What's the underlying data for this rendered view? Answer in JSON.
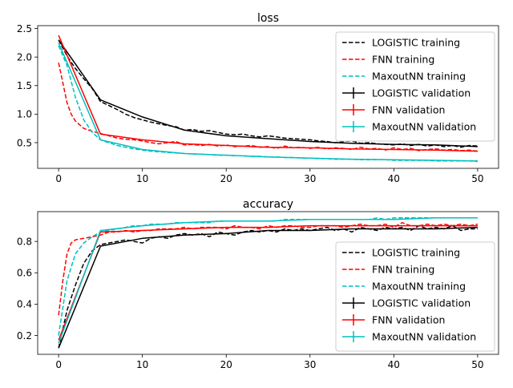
{
  "chart_data": [
    {
      "type": "line",
      "title": "loss",
      "xlabel": "",
      "ylabel": "",
      "xlim": [
        -2.5,
        52.5
      ],
      "ylim": [
        0.05,
        2.55
      ],
      "xticks": [
        0,
        10,
        20,
        30,
        40,
        50
      ],
      "xtick_labels": [
        "0",
        "10",
        "20",
        "30",
        "40",
        "50"
      ],
      "yticks": [
        0.5,
        1.0,
        1.5,
        2.0,
        2.5
      ],
      "ytick_labels": [
        "0.5",
        "1.0",
        "1.5",
        "2.0",
        "2.5"
      ],
      "legend_position": "top-right",
      "series": [
        {
          "name": "LOGISTIC training",
          "style": "dashed",
          "color": "#000000",
          "x": [
            0,
            1,
            2,
            3,
            4,
            5,
            6,
            7,
            8,
            9,
            10,
            11,
            12,
            13,
            14,
            15,
            16,
            17,
            18,
            19,
            20,
            21,
            22,
            23,
            24,
            25,
            26,
            27,
            28,
            29,
            30,
            31,
            32,
            33,
            34,
            35,
            36,
            37,
            38,
            39,
            40,
            41,
            42,
            43,
            44,
            45,
            46,
            47,
            48,
            49,
            50
          ],
          "y": [
            2.3,
            2.02,
            1.8,
            1.62,
            1.45,
            1.22,
            1.15,
            1.08,
            1.0,
            0.94,
            0.9,
            0.86,
            0.83,
            0.8,
            0.78,
            0.72,
            0.73,
            0.7,
            0.71,
            0.68,
            0.65,
            0.64,
            0.65,
            0.62,
            0.6,
            0.62,
            0.6,
            0.58,
            0.57,
            0.56,
            0.55,
            0.53,
            0.52,
            0.5,
            0.52,
            0.53,
            0.49,
            0.5,
            0.48,
            0.47,
            0.46,
            0.48,
            0.45,
            0.47,
            0.44,
            0.46,
            0.43,
            0.45,
            0.42,
            0.45,
            0.44
          ]
        },
        {
          "name": "FNN training",
          "style": "dashed",
          "color": "#ff0000",
          "x": [
            0,
            0.5,
            1,
            1.5,
            2,
            3,
            4,
            5,
            6,
            7,
            8,
            9,
            10,
            11,
            12,
            13,
            14,
            15,
            16,
            17,
            18,
            19,
            20,
            21,
            22,
            23,
            24,
            25,
            26,
            27,
            28,
            29,
            30,
            31,
            32,
            33,
            34,
            35,
            36,
            37,
            38,
            39,
            40,
            41,
            42,
            43,
            44,
            45,
            46,
            47,
            48,
            49,
            50
          ],
          "y": [
            1.9,
            1.55,
            1.2,
            1.0,
            0.88,
            0.75,
            0.7,
            0.66,
            0.62,
            0.58,
            0.56,
            0.55,
            0.53,
            0.5,
            0.48,
            0.5,
            0.52,
            0.46,
            0.47,
            0.45,
            0.47,
            0.44,
            0.46,
            0.43,
            0.44,
            0.45,
            0.42,
            0.43,
            0.4,
            0.44,
            0.41,
            0.42,
            0.4,
            0.42,
            0.39,
            0.41,
            0.4,
            0.38,
            0.42,
            0.39,
            0.4,
            0.37,
            0.41,
            0.38,
            0.4,
            0.36,
            0.38,
            0.39,
            0.37,
            0.38,
            0.36,
            0.37,
            0.35
          ]
        },
        {
          "name": "MaxoutNN training",
          "style": "dashed",
          "color": "#00bfbf",
          "x": [
            0,
            1,
            2,
            3,
            4,
            5,
            6,
            7,
            8,
            9,
            10,
            11,
            12,
            13,
            14,
            15,
            16,
            17,
            18,
            19,
            20,
            21,
            22,
            23,
            24,
            25,
            26,
            27,
            28,
            29,
            30,
            31,
            32,
            33,
            34,
            35,
            36,
            37,
            38,
            39,
            40,
            41,
            42,
            43,
            44,
            45,
            46,
            47,
            48,
            49,
            50
          ],
          "y": [
            2.2,
            1.85,
            1.3,
            0.9,
            0.68,
            0.55,
            0.5,
            0.45,
            0.42,
            0.39,
            0.37,
            0.35,
            0.34,
            0.33,
            0.32,
            0.31,
            0.3,
            0.3,
            0.29,
            0.28,
            0.28,
            0.27,
            0.27,
            0.26,
            0.26,
            0.25,
            0.25,
            0.24,
            0.24,
            0.23,
            0.23,
            0.22,
            0.22,
            0.21,
            0.21,
            0.21,
            0.2,
            0.2,
            0.2,
            0.2,
            0.19,
            0.19,
            0.19,
            0.19,
            0.19,
            0.18,
            0.18,
            0.18,
            0.18,
            0.18,
            0.17
          ]
        },
        {
          "name": "LOGISTIC validation",
          "style": "solid",
          "color": "#000000",
          "x": [
            0,
            5,
            10,
            15,
            20,
            25,
            30,
            35,
            40,
            45,
            50
          ],
          "y": [
            2.3,
            1.25,
            0.95,
            0.72,
            0.62,
            0.57,
            0.52,
            0.49,
            0.47,
            0.46,
            0.43
          ]
        },
        {
          "name": "FNN validation",
          "style": "solid",
          "color": "#ff0000",
          "x": [
            0,
            5,
            10,
            15,
            20,
            25,
            30,
            35,
            40,
            45,
            50
          ],
          "y": [
            2.38,
            0.65,
            0.55,
            0.48,
            0.45,
            0.42,
            0.41,
            0.39,
            0.38,
            0.37,
            0.35
          ]
        },
        {
          "name": "MaxoutNN validation",
          "style": "solid",
          "color": "#00bfbf",
          "x": [
            0,
            5,
            10,
            15,
            20,
            25,
            30,
            35,
            40,
            45,
            50
          ],
          "y": [
            2.25,
            0.55,
            0.38,
            0.31,
            0.28,
            0.25,
            0.23,
            0.21,
            0.2,
            0.19,
            0.18
          ]
        }
      ]
    },
    {
      "type": "line",
      "title": "accuracy",
      "xlabel": "",
      "ylabel": "",
      "xlim": [
        -2.5,
        52.5
      ],
      "ylim": [
        0.08,
        0.99
      ],
      "xticks": [
        0,
        10,
        20,
        30,
        40,
        50
      ],
      "xtick_labels": [
        "0",
        "10",
        "20",
        "30",
        "40",
        "50"
      ],
      "yticks": [
        0.2,
        0.4,
        0.6,
        0.8
      ],
      "ytick_labels": [
        "0.2",
        "0.4",
        "0.6",
        "0.8"
      ],
      "legend_position": "bottom-right",
      "series": [
        {
          "name": "LOGISTIC training",
          "style": "dashed",
          "color": "#000000",
          "x": [
            0,
            1,
            2,
            3,
            4,
            5,
            6,
            7,
            8,
            9,
            10,
            11,
            12,
            13,
            14,
            15,
            16,
            17,
            18,
            19,
            20,
            21,
            22,
            23,
            24,
            25,
            26,
            27,
            28,
            29,
            30,
            31,
            32,
            33,
            34,
            35,
            36,
            37,
            38,
            39,
            40,
            41,
            42,
            43,
            44,
            45,
            46,
            47,
            48,
            49,
            50
          ],
          "y": [
            0.12,
            0.36,
            0.52,
            0.66,
            0.74,
            0.78,
            0.79,
            0.8,
            0.81,
            0.8,
            0.79,
            0.82,
            0.83,
            0.82,
            0.84,
            0.85,
            0.84,
            0.85,
            0.83,
            0.86,
            0.85,
            0.84,
            0.86,
            0.87,
            0.86,
            0.87,
            0.86,
            0.88,
            0.87,
            0.88,
            0.87,
            0.88,
            0.89,
            0.87,
            0.88,
            0.86,
            0.89,
            0.88,
            0.87,
            0.89,
            0.88,
            0.89,
            0.87,
            0.9,
            0.88,
            0.89,
            0.88,
            0.9,
            0.87,
            0.88,
            0.88
          ]
        },
        {
          "name": "FNN training",
          "style": "dashed",
          "color": "#ff0000",
          "x": [
            0,
            0.5,
            1,
            1.5,
            2,
            3,
            4,
            5,
            6,
            7,
            8,
            9,
            10,
            11,
            12,
            13,
            14,
            15,
            16,
            17,
            18,
            19,
            20,
            21,
            22,
            23,
            24,
            25,
            26,
            27,
            28,
            29,
            30,
            31,
            32,
            33,
            34,
            35,
            36,
            37,
            38,
            39,
            40,
            41,
            42,
            43,
            44,
            45,
            46,
            47,
            48,
            49,
            50
          ],
          "y": [
            0.33,
            0.55,
            0.72,
            0.79,
            0.81,
            0.82,
            0.83,
            0.84,
            0.86,
            0.86,
            0.87,
            0.86,
            0.87,
            0.87,
            0.88,
            0.88,
            0.88,
            0.89,
            0.88,
            0.89,
            0.89,
            0.89,
            0.88,
            0.9,
            0.89,
            0.89,
            0.88,
            0.9,
            0.89,
            0.9,
            0.9,
            0.89,
            0.89,
            0.9,
            0.9,
            0.9,
            0.89,
            0.9,
            0.91,
            0.9,
            0.9,
            0.91,
            0.89,
            0.92,
            0.9,
            0.9,
            0.91,
            0.9,
            0.91,
            0.9,
            0.91,
            0.9,
            0.91
          ]
        },
        {
          "name": "MaxoutNN training",
          "style": "dashed",
          "color": "#00bfbf",
          "x": [
            0,
            1,
            2,
            3,
            4,
            5,
            6,
            7,
            8,
            9,
            10,
            11,
            12,
            13,
            14,
            15,
            16,
            17,
            18,
            19,
            20,
            21,
            22,
            23,
            24,
            25,
            26,
            27,
            28,
            29,
            30,
            31,
            32,
            33,
            34,
            35,
            36,
            37,
            38,
            39,
            40,
            41,
            42,
            43,
            44,
            45,
            46,
            47,
            48,
            49,
            50
          ],
          "y": [
            0.2,
            0.55,
            0.72,
            0.79,
            0.83,
            0.86,
            0.87,
            0.88,
            0.89,
            0.9,
            0.9,
            0.91,
            0.91,
            0.91,
            0.92,
            0.92,
            0.92,
            0.92,
            0.92,
            0.93,
            0.93,
            0.93,
            0.93,
            0.93,
            0.93,
            0.93,
            0.93,
            0.94,
            0.94,
            0.94,
            0.94,
            0.94,
            0.94,
            0.94,
            0.94,
            0.94,
            0.94,
            0.94,
            0.95,
            0.94,
            0.95,
            0.95,
            0.95,
            0.95,
            0.95,
            0.95,
            0.95,
            0.95,
            0.95,
            0.95,
            0.95
          ]
        },
        {
          "name": "LOGISTIC validation",
          "style": "solid",
          "color": "#000000",
          "x": [
            0,
            5,
            10,
            15,
            20,
            25,
            30,
            35,
            40,
            45,
            50
          ],
          "y": [
            0.12,
            0.77,
            0.82,
            0.84,
            0.85,
            0.87,
            0.87,
            0.88,
            0.88,
            0.88,
            0.89
          ]
        },
        {
          "name": "FNN validation",
          "style": "solid",
          "color": "#ff0000",
          "x": [
            0,
            5,
            10,
            15,
            20,
            25,
            30,
            35,
            40,
            45,
            50
          ],
          "y": [
            0.17,
            0.86,
            0.87,
            0.88,
            0.89,
            0.89,
            0.9,
            0.9,
            0.9,
            0.9,
            0.9
          ]
        },
        {
          "name": "MaxoutNN validation",
          "style": "solid",
          "color": "#00bfbf",
          "x": [
            0,
            5,
            10,
            15,
            20,
            25,
            30,
            35,
            40,
            45,
            50
          ],
          "y": [
            0.15,
            0.87,
            0.9,
            0.92,
            0.93,
            0.93,
            0.94,
            0.94,
            0.94,
            0.95,
            0.95
          ]
        }
      ]
    }
  ]
}
